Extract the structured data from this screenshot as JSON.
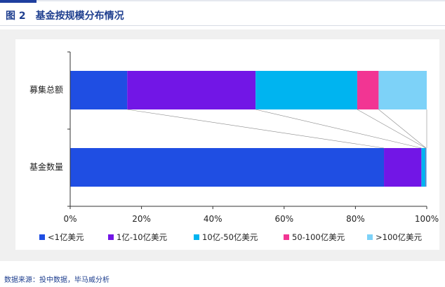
{
  "figure": {
    "label": "图 2",
    "title": "基金按规模分布情况",
    "source": "数据来源：投中数据，毕马威分析"
  },
  "chart_data": {
    "type": "bar",
    "orientation": "horizontal",
    "stacked": "percent",
    "categories": [
      "募集总额",
      "基金数量"
    ],
    "series": [
      {
        "name": "<1亿美元",
        "color": "#1f4ee3",
        "values": [
          16,
          88
        ]
      },
      {
        "name": "1亿-10亿美元",
        "color": "#7216e6",
        "values": [
          36,
          10.5
        ]
      },
      {
        "name": "10亿-50亿美元",
        "color": "#00b4f0",
        "values": [
          28.5,
          1.2
        ]
      },
      {
        "name": "50-100亿美元",
        "color": "#f23593",
        "values": [
          6,
          0.1
        ]
      },
      {
        "name": ">100亿美元",
        "color": "#7dd2f8",
        "values": [
          13.5,
          0.2
        ]
      }
    ],
    "x_ticks": [
      "0%",
      "20%",
      "40%",
      "60%",
      "80%",
      "100%"
    ],
    "xlim": [
      0,
      100
    ],
    "grid": false,
    "legend_position": "bottom",
    "connector_lines": true
  }
}
